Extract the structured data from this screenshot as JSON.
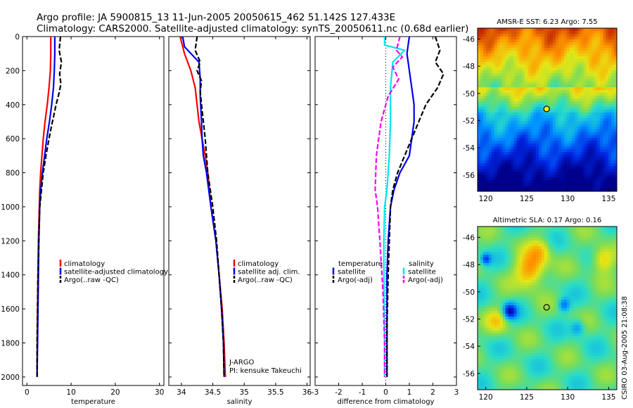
{
  "header": {
    "line1": "Argo profile: JA 5900815_13 11-Jun-2005 20050615_462 51.142S 127.433E",
    "line2": "Climatology: CARS2000. Satellite-adjusted climatology: synTS_20050611.nc (0.68d earlier)"
  },
  "credits": {
    "program": "J-ARGO",
    "pi": "PI: kensuke Takeuchi",
    "stamp": "CSIRO 03-Aug-2005 21:08:38"
  },
  "colors": {
    "climatology": "#ff0000",
    "satellite": "#0000ee",
    "argo": "#000000",
    "argo_salinity_diff": "#ff00ff",
    "satellite_salinity_diff": "#00e5ee"
  },
  "chart_data": [
    {
      "type": "line",
      "xlabel": "temperature",
      "ylabel": "",
      "xlim": [
        -1,
        31
      ],
      "ylim": [
        2050,
        0
      ],
      "xticks": [
        0,
        10,
        20,
        30
      ],
      "yticks": [
        0,
        200,
        400,
        600,
        800,
        1000,
        1200,
        1400,
        1600,
        1800,
        2000
      ],
      "legend": [
        "climatology",
        "satellite-adjusted climatology",
        "Argo(..raw -QC)"
      ],
      "series": [
        {
          "name": "climatology",
          "color": "#ff0000",
          "dash": "",
          "x": [
            5.4,
            5.4,
            5.3,
            5.0,
            4.6,
            4.1,
            3.7,
            3.4,
            3.1,
            2.9,
            2.8,
            2.6,
            2.5,
            2.4,
            2.35,
            2.3
          ],
          "y": [
            0,
            100,
            200,
            300,
            400,
            500,
            600,
            700,
            800,
            900,
            1000,
            1200,
            1400,
            1600,
            1800,
            2000
          ]
        },
        {
          "name": "satellite-adjusted climatology",
          "color": "#0000ee",
          "dash": "",
          "x": [
            6.3,
            6.3,
            6.2,
            6.0,
            5.6,
            5.1,
            4.5,
            4.0,
            3.5,
            3.1,
            2.9,
            2.7,
            2.6,
            2.5,
            2.4,
            2.3
          ],
          "y": [
            0,
            100,
            200,
            300,
            400,
            500,
            600,
            700,
            800,
            900,
            1000,
            1200,
            1400,
            1600,
            1800,
            2000
          ]
        },
        {
          "name": "Argo(..raw -QC)",
          "color": "#000000",
          "dash": "7,3",
          "x": [
            7.6,
            7.3,
            7.8,
            7.4,
            7.7,
            7.2,
            6.6,
            6.2,
            5.6,
            5.0,
            4.3,
            3.7,
            3.3,
            2.9,
            2.7,
            2.5,
            2.4,
            2.3,
            2.3
          ],
          "y": [
            0,
            80,
            150,
            220,
            280,
            340,
            400,
            450,
            520,
            600,
            700,
            800,
            900,
            1000,
            1200,
            1400,
            1600,
            1800,
            2000
          ]
        }
      ]
    },
    {
      "type": "line",
      "xlabel": "salinity",
      "xlim": [
        33.8,
        36.05
      ],
      "ylim": [
        2050,
        0
      ],
      "xticks": [
        34,
        34.5,
        35,
        35.5,
        36
      ],
      "legend": [
        "climatology",
        "satellite adj. clim.",
        "Argo(..raw -QC)"
      ],
      "series": [
        {
          "name": "climatology",
          "color": "#ff0000",
          "dash": "",
          "x": [
            33.98,
            34.05,
            34.15,
            34.22,
            34.25,
            34.28,
            34.33,
            34.38,
            34.42,
            34.47,
            34.55,
            34.6,
            34.65,
            34.68,
            34.7
          ],
          "y": [
            0,
            100,
            200,
            300,
            400,
            500,
            600,
            700,
            800,
            1000,
            1200,
            1400,
            1600,
            1800,
            2000
          ]
        },
        {
          "name": "satellite adj. clim.",
          "color": "#0000ee",
          "dash": "",
          "x": [
            34.02,
            34.05,
            34.28,
            34.3,
            34.3,
            34.32,
            34.33,
            34.35,
            34.4,
            34.47,
            34.55,
            34.6,
            34.64,
            34.67,
            34.68
          ],
          "y": [
            0,
            60,
            150,
            250,
            350,
            500,
            600,
            700,
            800,
            1000,
            1200,
            1400,
            1600,
            1800,
            2000
          ]
        },
        {
          "name": "Argo(..raw -QC)",
          "color": "#000000",
          "dash": "7,3",
          "x": [
            34.25,
            34.22,
            34.3,
            34.25,
            34.32,
            34.3,
            34.32,
            34.38,
            34.42,
            34.5,
            34.56,
            34.6,
            34.64,
            34.67,
            34.68
          ],
          "y": [
            0,
            80,
            150,
            200,
            260,
            320,
            400,
            600,
            800,
            1000,
            1200,
            1400,
            1600,
            1800,
            2000
          ]
        }
      ]
    },
    {
      "type": "line",
      "xlabel": "difference from climatology",
      "xlim": [
        -3,
        3
      ],
      "ylim": [
        2050,
        0
      ],
      "xticks": [
        -3,
        -2,
        -1,
        0,
        1,
        2,
        3
      ],
      "legend": [
        "temperature",
        "satellite",
        "Argo(-adj)",
        "salinity",
        "satellite",
        "Argo(-adj)"
      ],
      "series": [
        {
          "name": "satellite",
          "color": "#0000ee",
          "dash": "",
          "x": [
            1.0,
            0.9,
            1.0,
            1.1,
            1.2,
            1.2,
            1.1,
            1.0,
            0.6,
            0.35,
            0.2,
            0.1,
            0.05,
            0.05,
            0.05
          ],
          "y": [
            0,
            100,
            200,
            300,
            400,
            500,
            600,
            700,
            800,
            900,
            1000,
            1200,
            1400,
            1700,
            2000
          ]
        },
        {
          "name": "Argo(-adj)",
          "color": "#000000",
          "dash": "7,3",
          "x": [
            2.1,
            2.3,
            2.1,
            2.45,
            2.2,
            1.7,
            1.4,
            1.1,
            0.8,
            0.5,
            0.3,
            0.2,
            0.15,
            0.1,
            0.05,
            0.05
          ],
          "y": [
            0,
            80,
            150,
            220,
            300,
            400,
            500,
            600,
            700,
            800,
            900,
            1000,
            1200,
            1400,
            1700,
            2000
          ]
        },
        {
          "name": "satellite",
          "color": "#00e5ee",
          "dash": "",
          "x": [
            -0.05,
            -0.05,
            0.8,
            0.3,
            0.2,
            0.2,
            0.15,
            0.05,
            -0.05,
            -0.08,
            -0.08,
            -0.05,
            -0.05
          ],
          "y": [
            0,
            50,
            80,
            150,
            300,
            500,
            700,
            900,
            1000,
            1200,
            1400,
            1700,
            2000
          ]
        },
        {
          "name": "Argo(-adj)",
          "color": "#ff00ff",
          "dash": "7,3",
          "x": [
            0.6,
            0.45,
            0.7,
            0.3,
            0.55,
            0.1,
            -0.2,
            -0.4,
            -0.45,
            -0.35,
            -0.25,
            -0.12,
            -0.05,
            -0.05
          ],
          "y": [
            0,
            80,
            120,
            180,
            250,
            350,
            500,
            700,
            900,
            1000,
            1200,
            1500,
            1800,
            2000
          ]
        }
      ]
    },
    {
      "type": "heatmap",
      "title": "AMSR-E SST: 6.23 Argo: 7.55",
      "xlim": [
        119,
        136
      ],
      "ylim": [
        -57.2,
        -45.2
      ],
      "xticks": [
        120,
        125,
        130,
        135
      ],
      "yticks": [
        -46,
        -48,
        -50,
        -52,
        -54,
        -56
      ],
      "marker": {
        "lon": 127.43,
        "lat": -51.14
      }
    },
    {
      "type": "heatmap",
      "title": "Altimetric SLA: 0.17 Argo: 0.16",
      "xlim": [
        119,
        136
      ],
      "ylim": [
        -57.2,
        -45.2
      ],
      "xticks": [
        120,
        125,
        130,
        135
      ],
      "yticks": [
        -46,
        -48,
        -50,
        -52,
        -54,
        -56
      ],
      "marker": {
        "lon": 127.43,
        "lat": -51.14
      }
    }
  ]
}
